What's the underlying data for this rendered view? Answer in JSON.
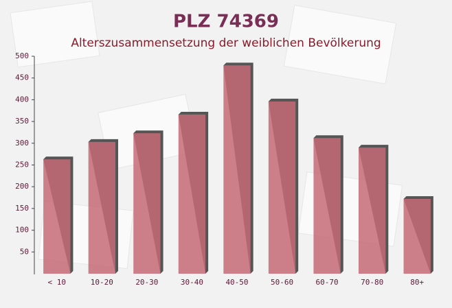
{
  "chart_data": {
    "type": "bar",
    "title": "PLZ 74369",
    "subtitle": "Alterszusammensetzung der weiblichen Bevölkerung",
    "categories": [
      "< 10",
      "10-20",
      "20-30",
      "30-40",
      "40-50",
      "50-60",
      "60-70",
      "70-80",
      "80+"
    ],
    "values": [
      263,
      303,
      323,
      366,
      479,
      396,
      312,
      290,
      172
    ],
    "color": "#c56b75",
    "ylim": [
      0,
      500
    ],
    "yticks": [
      50,
      100,
      150,
      200,
      250,
      300,
      350,
      400,
      450,
      500
    ],
    "grid": false
  }
}
